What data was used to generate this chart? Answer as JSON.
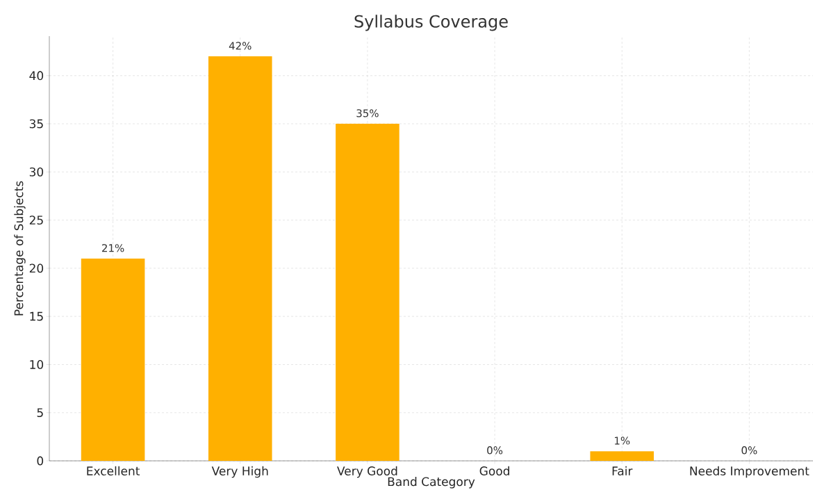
{
  "chart_data": {
    "type": "bar",
    "title": "Syllabus Coverage",
    "xlabel": "Band Category",
    "ylabel": "Percentage of Subjects",
    "categories": [
      "Excellent",
      "Very High",
      "Very Good",
      "Good",
      "Fair",
      "Needs Improvement"
    ],
    "values": [
      21,
      42,
      35,
      0,
      1,
      0
    ],
    "value_labels": [
      "21%",
      "42%",
      "35%",
      "0%",
      "1%",
      "0%"
    ],
    "color": "#ffb000",
    "ylim": [
      0,
      44.1
    ],
    "yticks": [
      0,
      5,
      10,
      15,
      20,
      25,
      30,
      35,
      40
    ],
    "grid": true,
    "line_style": "dashed"
  }
}
